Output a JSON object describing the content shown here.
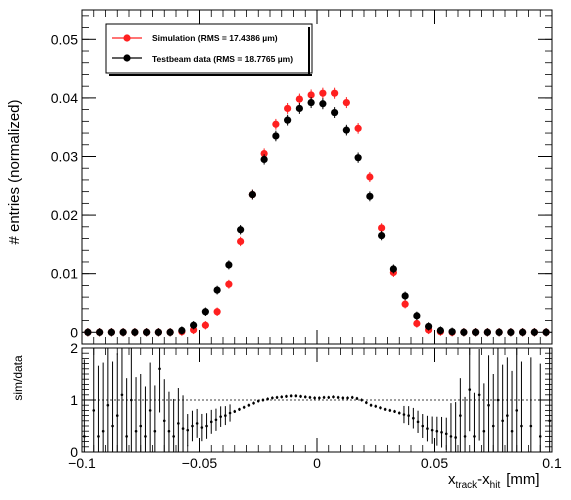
{
  "chart_data": [
    {
      "type": "scatter",
      "panel": "main",
      "ylabel": "# entries (normalized)",
      "xlim": [
        -0.1,
        0.1
      ],
      "ylim": [
        -0.002,
        0.055
      ],
      "yticks": [
        0,
        0.01,
        0.02,
        0.03,
        0.04,
        0.05
      ],
      "ytick_labels": [
        "0",
        "0.01",
        "0.02",
        "0.03",
        "0.04",
        "0.05"
      ],
      "grid": false,
      "legend_position": "top-left",
      "series": [
        {
          "name": "Simulation (RMS = 17.4386 µm)",
          "color": "#ff2020",
          "x": [
            -0.0975,
            -0.0925,
            -0.0875,
            -0.0825,
            -0.0775,
            -0.0725,
            -0.0675,
            -0.0625,
            -0.0575,
            -0.0525,
            -0.0475,
            -0.0425,
            -0.0375,
            -0.0325,
            -0.0275,
            -0.0225,
            -0.0175,
            -0.0125,
            -0.0075,
            -0.0025,
            0.0025,
            0.0075,
            0.0125,
            0.0175,
            0.0225,
            0.0275,
            0.0325,
            0.0375,
            0.0425,
            0.0475,
            0.0525,
            0.0575,
            0.0625,
            0.0675,
            0.0725,
            0.0775,
            0.0825,
            0.0875,
            0.0925,
            0.0975
          ],
          "y": [
            0,
            0,
            0,
            0,
            0,
            0,
            0,
            0,
            0.0001,
            0.0004,
            0.0012,
            0.0035,
            0.0082,
            0.0155,
            0.0235,
            0.0305,
            0.0355,
            0.0382,
            0.0398,
            0.0405,
            0.0408,
            0.0408,
            0.0392,
            0.0348,
            0.0265,
            0.0178,
            0.0102,
            0.0048,
            0.0015,
            0.0004,
            0.0001,
            0,
            0,
            0,
            0,
            0,
            0,
            0,
            0,
            0
          ]
        },
        {
          "name": "Testbeam data (RMS = 18.7765 µm)",
          "color": "#000000",
          "x": [
            -0.0975,
            -0.0925,
            -0.0875,
            -0.0825,
            -0.0775,
            -0.0725,
            -0.0675,
            -0.0625,
            -0.0575,
            -0.0525,
            -0.0475,
            -0.0425,
            -0.0375,
            -0.0325,
            -0.0275,
            -0.0225,
            -0.0175,
            -0.0125,
            -0.0075,
            -0.0025,
            0.0025,
            0.0075,
            0.0125,
            0.0175,
            0.0225,
            0.0275,
            0.0325,
            0.0375,
            0.0425,
            0.0475,
            0.0525,
            0.0575,
            0.0625,
            0.0675,
            0.0725,
            0.0775,
            0.0825,
            0.0875,
            0.0925,
            0.0975
          ],
          "y": [
            0,
            0,
            0,
            0,
            0,
            0,
            0,
            0,
            0.0003,
            0.0012,
            0.0035,
            0.0072,
            0.0115,
            0.0175,
            0.0235,
            0.0295,
            0.0335,
            0.0362,
            0.0382,
            0.0392,
            0.039,
            0.0375,
            0.0345,
            0.0298,
            0.0232,
            0.0165,
            0.0108,
            0.0062,
            0.0028,
            0.001,
            0.0003,
            0.0001,
            0,
            0,
            0,
            0,
            0,
            0,
            0,
            0
          ]
        }
      ]
    },
    {
      "type": "scatter",
      "panel": "ratio",
      "ylabel": "sim/data",
      "xlabel": "x_track-x_hit [mm]",
      "xlabel_main": "x",
      "xlabel_sub1": "track",
      "xlabel_mid": "-x",
      "xlabel_sub2": "hit",
      "xlabel_unit": "[mm]",
      "xlim": [
        -0.1,
        0.1
      ],
      "ylim": [
        0,
        2
      ],
      "yticks": [
        0,
        1,
        2
      ],
      "ytick_labels": [
        "0",
        "1",
        "2"
      ],
      "xticks": [
        -0.1,
        -0.05,
        0,
        0.05,
        0.1
      ],
      "xtick_labels": [
        "−0.1",
        "−0.05",
        "0",
        "0.05",
        "0.1"
      ],
      "reference_line_y": 1,
      "series": [
        {
          "name": "",
          "color": "#000000",
          "x": [
            -0.099,
            -0.095,
            -0.093,
            -0.091,
            -0.089,
            -0.087,
            -0.085,
            -0.083,
            -0.081,
            -0.079,
            -0.077,
            -0.075,
            -0.073,
            -0.071,
            -0.069,
            -0.067,
            -0.065,
            -0.063,
            -0.061,
            -0.059,
            -0.057,
            -0.055,
            -0.053,
            -0.051,
            -0.049,
            -0.047,
            -0.045,
            -0.043,
            -0.041,
            -0.039,
            -0.037,
            -0.035,
            -0.033,
            -0.031,
            -0.029,
            -0.027,
            -0.025,
            -0.023,
            -0.021,
            -0.019,
            -0.017,
            -0.015,
            -0.013,
            -0.011,
            -0.009,
            -0.007,
            -0.005,
            -0.003,
            -0.001,
            0.001,
            0.003,
            0.005,
            0.007,
            0.009,
            0.011,
            0.013,
            0.015,
            0.017,
            0.019,
            0.021,
            0.023,
            0.025,
            0.027,
            0.029,
            0.031,
            0.033,
            0.035,
            0.037,
            0.039,
            0.041,
            0.043,
            0.045,
            0.047,
            0.049,
            0.051,
            0.053,
            0.055,
            0.057,
            0.059,
            0.061,
            0.063,
            0.065,
            0.067,
            0.069,
            0.071,
            0.073,
            0.075,
            0.077,
            0.079,
            0.081,
            0.083,
            0.085,
            0.087,
            0.091,
            0.095,
            0.099
          ],
          "y": [
            0.3,
            0.8,
            0.3,
            0.4,
            0.9,
            0.5,
            0.7,
            1.1,
            0.3,
            1.0,
            0.4,
            0.5,
            0.3,
            0.8,
            0.4,
            1.6,
            0.6,
            0.4,
            0.3,
            0.55,
            0.45,
            0.42,
            0.5,
            0.55,
            0.47,
            0.5,
            0.58,
            0.62,
            0.68,
            0.7,
            0.75,
            0.78,
            0.82,
            0.86,
            0.9,
            0.94,
            0.98,
            1.0,
            1.02,
            1.04,
            1.05,
            1.06,
            1.07,
            1.08,
            1.08,
            1.07,
            1.06,
            1.05,
            1.04,
            1.04,
            1.05,
            1.05,
            1.06,
            1.05,
            1.04,
            1.04,
            1.05,
            1.03,
            1.0,
            0.95,
            0.9,
            0.88,
            0.85,
            0.82,
            0.8,
            0.78,
            0.75,
            0.72,
            0.7,
            0.65,
            0.58,
            0.5,
            0.45,
            0.42,
            0.4,
            0.38,
            0.35,
            0.3,
            0.28,
            0.7,
            0.3,
            1.2,
            0.3,
            1.1,
            0.4,
            0.9,
            0.5,
            1.0,
            0.6,
            0.7,
            0.4,
            0.8,
            0.5,
            0.5,
            0.3,
            0.6
          ]
        }
      ]
    }
  ]
}
